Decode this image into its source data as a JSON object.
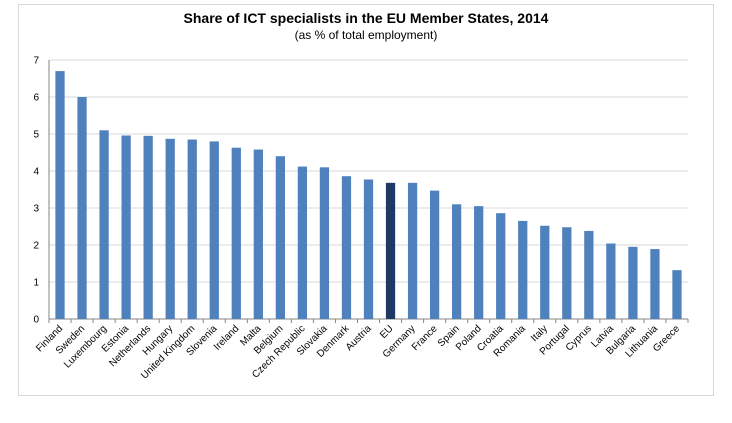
{
  "chart_data": {
    "type": "bar",
    "title": "Share of ICT specialists in the EU Member States, 2014",
    "subtitle": "(as % of total employment)",
    "xlabel": "",
    "ylabel": "",
    "ylim": [
      0,
      7
    ],
    "yticks": [
      "0",
      "1",
      "2",
      "3",
      "4",
      "5",
      "6",
      "7"
    ],
    "grid": true,
    "legend": "none",
    "categories": [
      "Finland",
      "Sweden",
      "Luxembourg",
      "Estonia",
      "Netherlands",
      "Hungary",
      "United Kingdom",
      "Slovenia",
      "Ireland",
      "Malta",
      "Belgium",
      "Czech Republic",
      "Slovakia",
      "Denmark",
      "Austria",
      "EU",
      "Germany",
      "France",
      "Spain",
      "Poland",
      "Croatia",
      "Romania",
      "Italy",
      "Portugal",
      "Cyprus",
      "Latvia",
      "Bulgaria",
      "Lithuania",
      "Greece"
    ],
    "values": [
      6.7,
      6.0,
      5.1,
      4.96,
      4.95,
      4.87,
      4.85,
      4.8,
      4.63,
      4.58,
      4.4,
      4.12,
      4.1,
      3.86,
      3.77,
      3.68,
      3.68,
      3.47,
      3.1,
      3.05,
      2.86,
      2.65,
      2.52,
      2.48,
      2.38,
      2.04,
      1.95,
      1.89,
      1.32
    ],
    "highlight_category": "EU",
    "colors": {
      "bar": "#4f81bd",
      "highlight": "#1f3864",
      "grid": "#d9d9d9",
      "axis": "#868686"
    }
  }
}
